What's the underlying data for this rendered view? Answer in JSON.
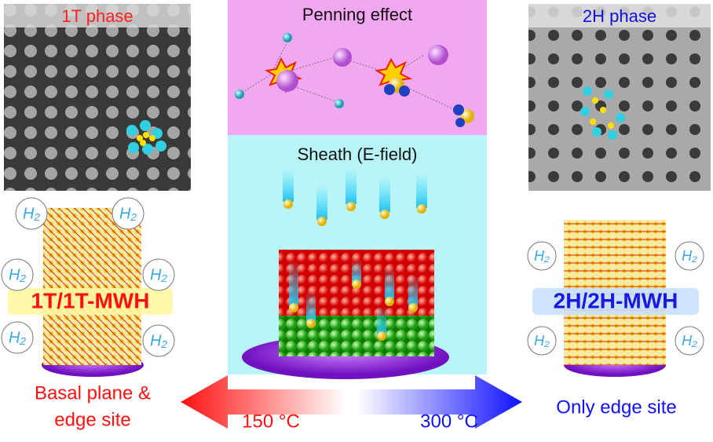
{
  "panels": {
    "left_image": {
      "label": "1T phase"
    },
    "penning": {
      "title": "Penning effect"
    },
    "right_image": {
      "label": "2H phase"
    },
    "sheath": {
      "title": "Sheath (E-field)"
    }
  },
  "left_structure": {
    "label": "1T/1T-MWH",
    "bubbles": [
      "H₂",
      "H₂",
      "H₂",
      "H₂",
      "H₂",
      "H₂"
    ]
  },
  "right_structure": {
    "label": "2H/2H-MWH",
    "bubbles": [
      "H₂",
      "H₂",
      "H₂",
      "H₂"
    ]
  },
  "arrows": {
    "left": {
      "temperature": "150 °C",
      "result": [
        "Basal plane &",
        "edge site"
      ]
    },
    "right": {
      "temperature": "300 °C",
      "result": [
        "Only edge site"
      ]
    }
  }
}
